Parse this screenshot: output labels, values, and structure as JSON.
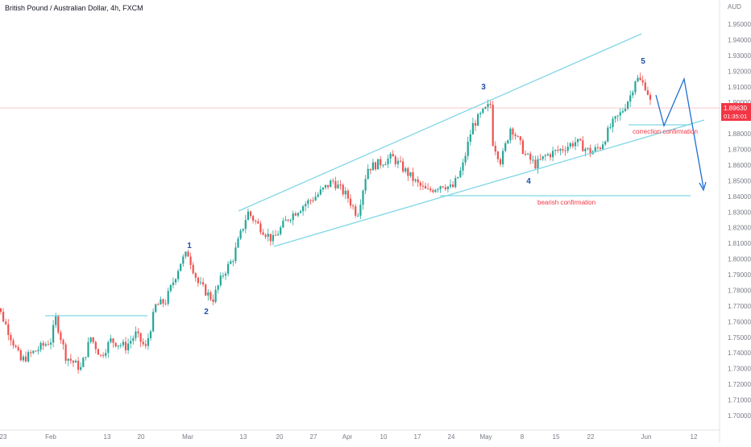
{
  "header": {
    "symbol_title": "British Pound / Australian Dollar, 4h, FXCM",
    "currency": "AUD"
  },
  "price_tag": {
    "price": "1.89630",
    "countdown": "01:35:01"
  },
  "chart_data": {
    "type": "candlestick",
    "title": "British Pound / Australian Dollar, 4h, FXCM",
    "ylabel": "AUD",
    "ylim": [
      1.69,
      1.96
    ],
    "y_ticks": [
      "1.95000",
      "1.94000",
      "1.93000",
      "1.92000",
      "1.91000",
      "1.90000",
      "1.89000",
      "1.88000",
      "1.87000",
      "1.86000",
      "1.85000",
      "1.84000",
      "1.83000",
      "1.82000",
      "1.81000",
      "1.80000",
      "1.79000",
      "1.78000",
      "1.77000",
      "1.76000",
      "1.75000",
      "1.74000",
      "1.73000",
      "1.72000",
      "1.71000",
      "1.70000"
    ],
    "x_ticks": [
      "23",
      "Feb",
      "13",
      "20",
      "Mar",
      "13",
      "20",
      "27",
      "Apr",
      "10",
      "17",
      "24",
      "May",
      "8",
      "15",
      "22",
      "Jun",
      "12"
    ],
    "current_price": 1.8963,
    "grid": false,
    "colors": {
      "up": "#26a69a",
      "down": "#ef5350",
      "lines": "#7fd6e6",
      "projection": "#1f6fd1",
      "labels": "#1e4fa8",
      "notes": "#f23645"
    },
    "wave_labels": [
      {
        "label": "1",
        "x": "Mar",
        "y": 1.812
      },
      {
        "label": "2",
        "x": "Mar 6",
        "y": 1.768
      },
      {
        "label": "3",
        "x": "Apr 30",
        "y": 1.9095
      },
      {
        "label": "4",
        "x": "May 17",
        "y": 1.8545
      },
      {
        "label": "5",
        "x": "May 31",
        "y": 1.9261
      }
    ],
    "annotations": [
      {
        "text": "correction confirmation",
        "price": 1.8835
      },
      {
        "text": "bearish confirmation",
        "price": 1.84
      }
    ],
    "horizontal_levels": [
      1.7635,
      1.84,
      1.885
    ],
    "price_path": [
      {
        "x": "Jan 20",
        "y": 1.78
      },
      {
        "x": "Jan 23",
        "y": 1.758
      },
      {
        "x": "Jan 26",
        "y": 1.735
      },
      {
        "x": "Feb",
        "y": 1.748
      },
      {
        "x": "Feb 2",
        "y": 1.762
      },
      {
        "x": "Feb 4",
        "y": 1.738
      },
      {
        "x": "Feb 7",
        "y": 1.73
      },
      {
        "x": "Feb 9",
        "y": 1.75
      },
      {
        "x": "Feb 11",
        "y": 1.738
      },
      {
        "x": "Feb 13",
        "y": 1.748
      },
      {
        "x": "Feb 16",
        "y": 1.744
      },
      {
        "x": "Feb 18",
        "y": 1.752
      },
      {
        "x": "Feb 20",
        "y": 1.743
      },
      {
        "x": "Feb 22",
        "y": 1.77
      },
      {
        "x": "Feb 24",
        "y": 1.773
      },
      {
        "x": "Feb 27",
        "y": 1.798
      },
      {
        "x": "Mar",
        "y": 1.804
      },
      {
        "x": "Mar 3",
        "y": 1.785
      },
      {
        "x": "Mar 6",
        "y": 1.774
      },
      {
        "x": "Mar 8",
        "y": 1.79
      },
      {
        "x": "Mar 10",
        "y": 1.8
      },
      {
        "x": "Mar 13",
        "y": 1.83
      },
      {
        "x": "Mar 15",
        "y": 1.822
      },
      {
        "x": "Mar 18",
        "y": 1.812
      },
      {
        "x": "Mar 21",
        "y": 1.826
      },
      {
        "x": "Mar 24",
        "y": 1.834
      },
      {
        "x": "Mar 27",
        "y": 1.841
      },
      {
        "x": "Mar 30",
        "y": 1.85
      },
      {
        "x": "Apr 1",
        "y": 1.84
      },
      {
        "x": "Apr 3",
        "y": 1.828
      },
      {
        "x": "Apr 5",
        "y": 1.858
      },
      {
        "x": "Apr 8",
        "y": 1.862
      },
      {
        "x": "Apr 10",
        "y": 1.865
      },
      {
        "x": "Apr 13",
        "y": 1.855
      },
      {
        "x": "Apr 15",
        "y": 1.848
      },
      {
        "x": "Apr 17",
        "y": 1.843
      },
      {
        "x": "Apr 20",
        "y": 1.848
      },
      {
        "x": "Apr 22",
        "y": 1.845
      },
      {
        "x": "Apr 24",
        "y": 1.858
      },
      {
        "x": "Apr 26",
        "y": 1.885
      },
      {
        "x": "Apr 28",
        "y": 1.893
      },
      {
        "x": "Apr 30",
        "y": 1.9
      },
      {
        "x": "May 2",
        "y": 1.878
      },
      {
        "x": "May 4",
        "y": 1.862
      },
      {
        "x": "May 6",
        "y": 1.885
      },
      {
        "x": "May 9",
        "y": 1.866
      },
      {
        "x": "May 11",
        "y": 1.86
      },
      {
        "x": "May 13",
        "y": 1.866
      },
      {
        "x": "May 16",
        "y": 1.87
      },
      {
        "x": "May 19",
        "y": 1.875
      },
      {
        "x": "May 22",
        "y": 1.868
      },
      {
        "x": "May 24",
        "y": 1.872
      },
      {
        "x": "May 26",
        "y": 1.885
      },
      {
        "x": "May 28",
        "y": 1.893
      },
      {
        "x": "May 30",
        "y": 1.905
      },
      {
        "x": "May 31",
        "y": 1.916
      },
      {
        "x": "Jun 1",
        "y": 1.91
      },
      {
        "x": "Jun 2",
        "y": 1.898
      }
    ]
  }
}
